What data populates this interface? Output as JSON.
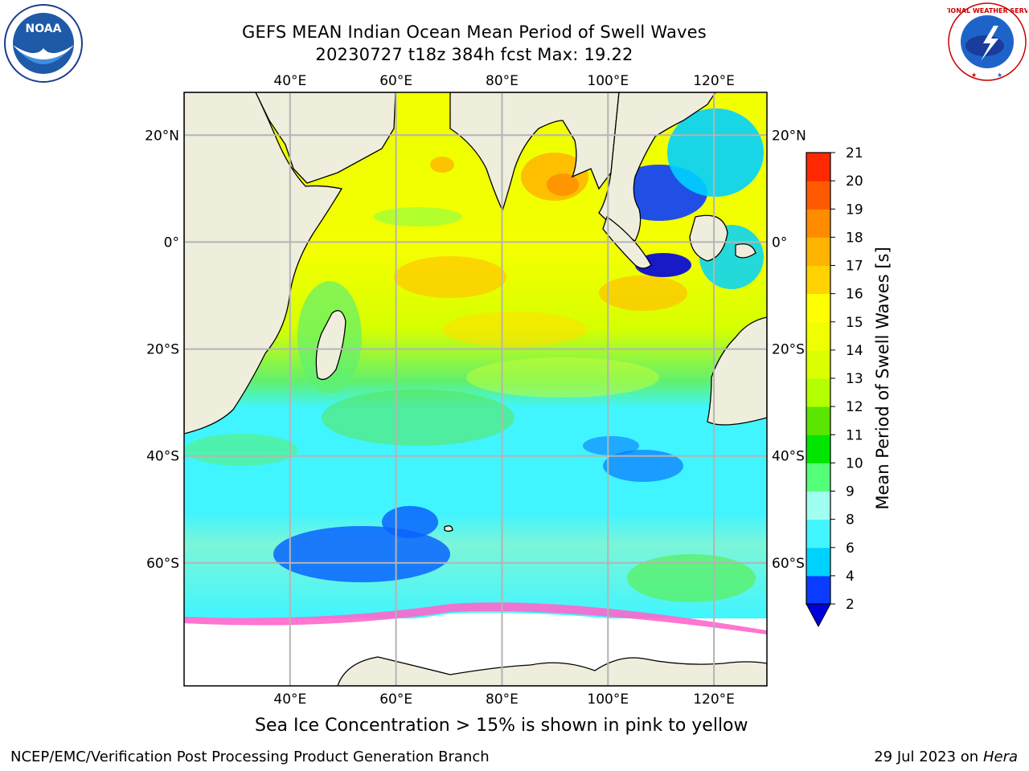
{
  "header": {
    "title_line1": "GEFS MEAN Indian Ocean Mean Period of Swell Waves",
    "title_line2": "20230727 t18z 384h fcst   Max: 19.22"
  },
  "logos": {
    "left": {
      "name": "noaa-logo",
      "text": "NOAA"
    },
    "right": {
      "name": "nws-logo",
      "text": "NATIONAL WEATHER SERVICE"
    }
  },
  "map": {
    "projection": "cylindrical",
    "lon_range": [
      20,
      130
    ],
    "lat_range": [
      -83,
      28
    ],
    "lon_ticks": [
      {
        "value": 40,
        "label": "40°E"
      },
      {
        "value": 60,
        "label": "60°E"
      },
      {
        "value": 80,
        "label": "80°E"
      },
      {
        "value": 100,
        "label": "100°E"
      },
      {
        "value": 120,
        "label": "120°E"
      }
    ],
    "lat_ticks": [
      {
        "value": 20,
        "label": "20°N"
      },
      {
        "value": 0,
        "label": "0°"
      },
      {
        "value": -20,
        "label": "20°S"
      },
      {
        "value": -40,
        "label": "40°S"
      },
      {
        "value": -60,
        "label": "60°S"
      }
    ],
    "grid": true,
    "colors": {
      "land": "#efeedd",
      "grid": "#b4b4b4",
      "ice_pink": "#ff66cc",
      "ice_orange": "#ffb347"
    }
  },
  "colorbar": {
    "label": "Mean Period of Swell Waves [s]",
    "ticks": [
      "2",
      "4",
      "6",
      "8",
      "9",
      "10",
      "11",
      "12",
      "13",
      "14",
      "15",
      "16",
      "17",
      "18",
      "19",
      "20",
      "21"
    ],
    "colors": [
      "#0a3cff",
      "#00d2ff",
      "#41f5ff",
      "#a0fff0",
      "#54ff78",
      "#00e600",
      "#5ae600",
      "#b4ff00",
      "#dcff00",
      "#f0ff00",
      "#ffff00",
      "#ffd200",
      "#ffb400",
      "#ff8c00",
      "#ff5a00",
      "#ff2800"
    ],
    "extend_low_color": "#0000dd"
  },
  "caption": "Sea Ice Concentration > 15% is shown in pink to yellow",
  "footer": {
    "left": "NCEP/EMC/Verification Post Processing Product Generation Branch",
    "date": "29 Jul 2023 on ",
    "machine": "Hera"
  }
}
